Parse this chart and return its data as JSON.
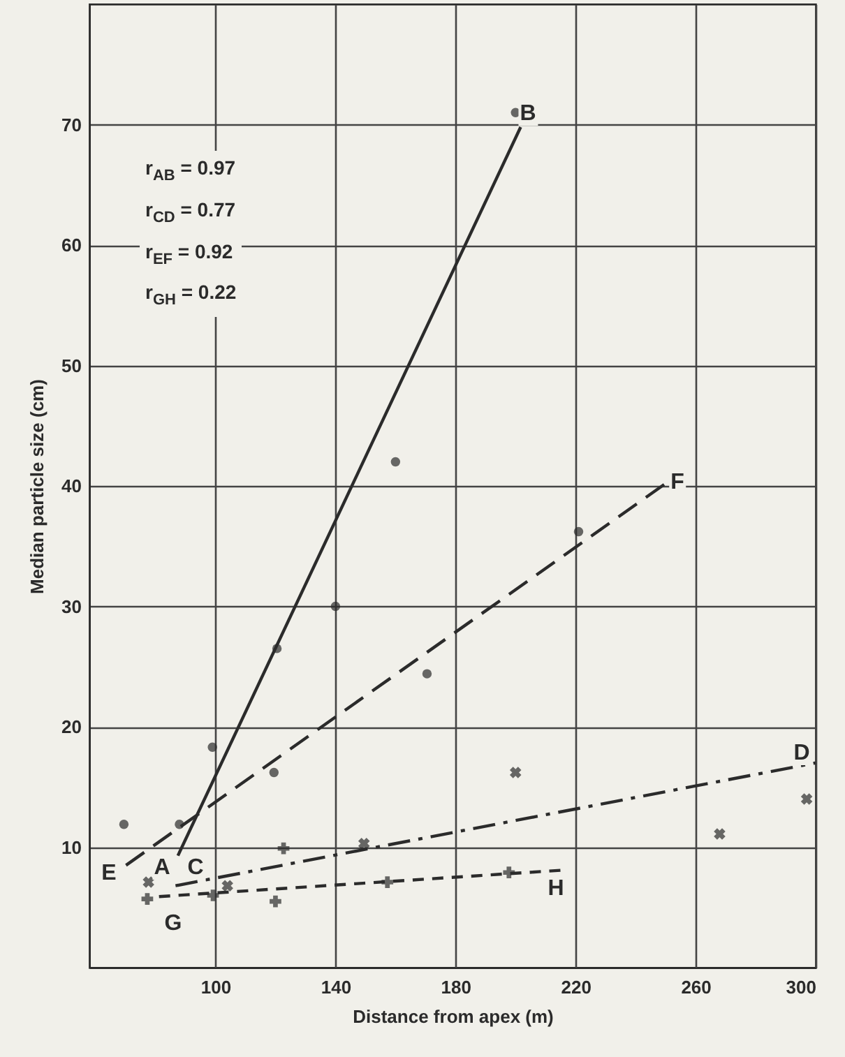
{
  "chart_data": {
    "type": "scatter",
    "xlabel": "Distance from apex (m)",
    "ylabel": "Median particle size (cm)",
    "xlim": [
      58,
      300
    ],
    "ylim": [
      0,
      80
    ],
    "xticks": [
      100,
      140,
      180,
      220,
      260,
      300
    ],
    "yticks": [
      10,
      20,
      30,
      40,
      50,
      60,
      70
    ],
    "grid": true,
    "series": [
      {
        "marker": "circle",
        "color": "#2b2b2b",
        "x": [
          99,
          120.5,
          140,
          160,
          200
        ],
        "values": [
          18.3,
          26.5,
          30,
          42,
          71
        ]
      },
      {
        "marker": "circle",
        "color": "#2b2b2b",
        "x": [
          69.5,
          88,
          119.5,
          170.5,
          221
        ],
        "values": [
          11.9,
          11.9,
          16.2,
          24.4,
          36.2
        ]
      },
      {
        "marker": "x",
        "color": "#2b2b2b",
        "x": [
          77.7,
          104,
          149.5,
          200,
          268,
          297
        ],
        "values": [
          7.1,
          6.8,
          10.3,
          16.2,
          11.1,
          14
        ]
      },
      {
        "marker": "cross",
        "color": "#2b2b2b",
        "x": [
          77.3,
          99.2,
          120,
          122.7,
          157.3,
          197.8
        ],
        "values": [
          5.7,
          6,
          5.5,
          9.9,
          7.1,
          7.9
        ]
      },
      {
        "type": "line",
        "line_style": "solid",
        "color": "#2b2b2b",
        "x": [
          87.5,
          201.7
        ],
        "values": [
          9.3,
          69.8
        ]
      },
      {
        "type": "line",
        "line_style": "dashed",
        "color": "#2b2b2b",
        "x": [
          70.2,
          250
        ],
        "values": [
          8.5,
          40.2
        ]
      },
      {
        "type": "line",
        "line_style": "dashdot",
        "color": "#2b2b2b",
        "x": [
          86.7,
          300
        ],
        "values": [
          6.8,
          17
        ]
      },
      {
        "type": "line",
        "line_style": "shortdash",
        "color": "#2b2b2b",
        "x": [
          81.2,
          216
        ],
        "values": [
          5.9,
          8.1
        ]
      }
    ],
    "annotations": [
      "r$_{AB}$ = 0.97",
      "r$_{CD}$ = 0.77",
      "r$_{EF}$ = 0.92",
      "r$_{GH}$ = 0.22",
      "A",
      "B",
      "C",
      "D",
      "E",
      "F",
      "G",
      "H"
    ]
  }
}
